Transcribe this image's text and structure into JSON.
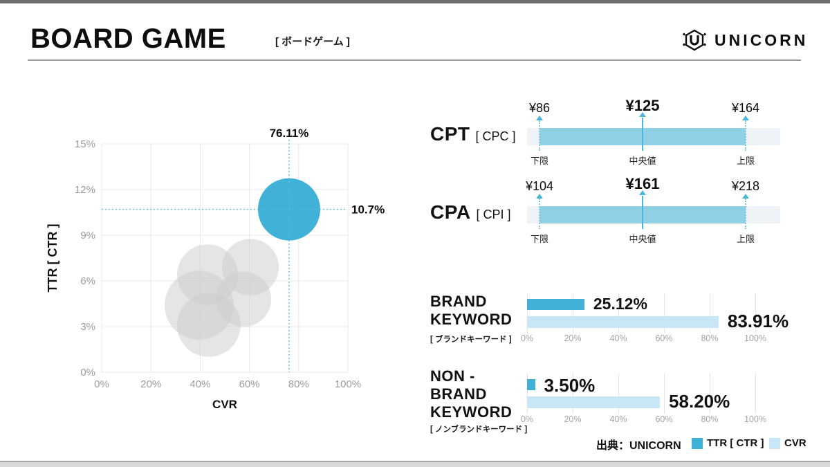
{
  "header": {
    "title": "BOARD GAME",
    "subtitle": "[ ボードゲーム ]",
    "logo_text": "UNICORN"
  },
  "colors": {
    "accent": "#41b1d8",
    "accent_light": "#c8e7f6",
    "range_fill": "#8fd0e4",
    "range_track": "#eef3f7",
    "crosshair": "#55bede",
    "context_bubble": "#cccccc",
    "grid": "#e8e8e8",
    "tick_text": "#9b9b9b"
  },
  "chart_data": [
    {
      "type": "scatter",
      "title": "TTR vs CVR bubble chart",
      "xlabel": "CVR",
      "ylabel": "TTR [ CTR ]",
      "xlim": [
        0,
        100
      ],
      "ylim": [
        0,
        15
      ],
      "x_ticks_pct": [
        0,
        20,
        40,
        60,
        80,
        100
      ],
      "y_ticks_pct": [
        0,
        3,
        6,
        9,
        12,
        15
      ],
      "x_tick_labels": [
        "0%",
        "20%",
        "40%",
        "60%",
        "80%",
        "100%"
      ],
      "y_tick_labels": [
        "0%",
        "3%",
        "6%",
        "9%",
        "12%",
        "15%"
      ],
      "grid": true,
      "highlight": {
        "x": 76.11,
        "y": 10.7,
        "r": 45,
        "x_label": "76.11%",
        "y_label": "10.7%"
      },
      "context_points": [
        {
          "x": 60.4,
          "y": 6.9,
          "r": 41
        },
        {
          "x": 43.0,
          "y": 6.4,
          "r": 44
        },
        {
          "x": 39.6,
          "y": 4.4,
          "r": 50
        },
        {
          "x": 57.6,
          "y": 4.8,
          "r": 40
        },
        {
          "x": 43.5,
          "y": 3.1,
          "r": 46
        }
      ]
    },
    {
      "type": "range",
      "metric": "CPT",
      "metric_alt": "[ CPC ]",
      "min": 86,
      "median": 125,
      "max": 164,
      "min_label": "¥86",
      "median_label": "¥125",
      "max_label": "¥164",
      "marker_labels": [
        "下限",
        "中央値",
        "上限"
      ]
    },
    {
      "type": "range",
      "metric": "CPA",
      "metric_alt": "[ CPI ]",
      "min": 104,
      "median": 161,
      "max": 218,
      "min_label": "¥104",
      "median_label": "¥161",
      "max_label": "¥218",
      "marker_labels": [
        "下限",
        "中央値",
        "上限"
      ]
    },
    {
      "type": "bar",
      "group_lines": [
        "BRAND",
        "KEYWORD"
      ],
      "group_sub": "[ ブランドキーワード ]",
      "xlim": [
        0,
        100
      ],
      "x_tick_labels": [
        "0%",
        "20%",
        "40%",
        "60%",
        "80%",
        "100%"
      ],
      "series": [
        {
          "name": "TTR [ CTR ]",
          "value": 25.12,
          "label": "25.12%"
        },
        {
          "name": "CVR",
          "value": 83.91,
          "label": "83.91%"
        }
      ]
    },
    {
      "type": "bar",
      "group_lines": [
        "NON -",
        "BRAND",
        "KEYWORD"
      ],
      "group_sub": "[ ノンブランドキーワード ]",
      "xlim": [
        0,
        100
      ],
      "x_tick_labels": [
        "0%",
        "20%",
        "40%",
        "60%",
        "80%",
        "100%"
      ],
      "series": [
        {
          "name": "TTR [ CTR ]",
          "value": 3.5,
          "label": "3.50%"
        },
        {
          "name": "CVR",
          "value": 58.2,
          "label": "58.20%"
        }
      ]
    }
  ],
  "footer": {
    "source": "出典：UNICORN",
    "legend": [
      {
        "label": "TTR [ CTR ]",
        "swatch": "#41b1d8"
      },
      {
        "label": "CVR",
        "swatch": "#c8e7f6"
      }
    ]
  }
}
